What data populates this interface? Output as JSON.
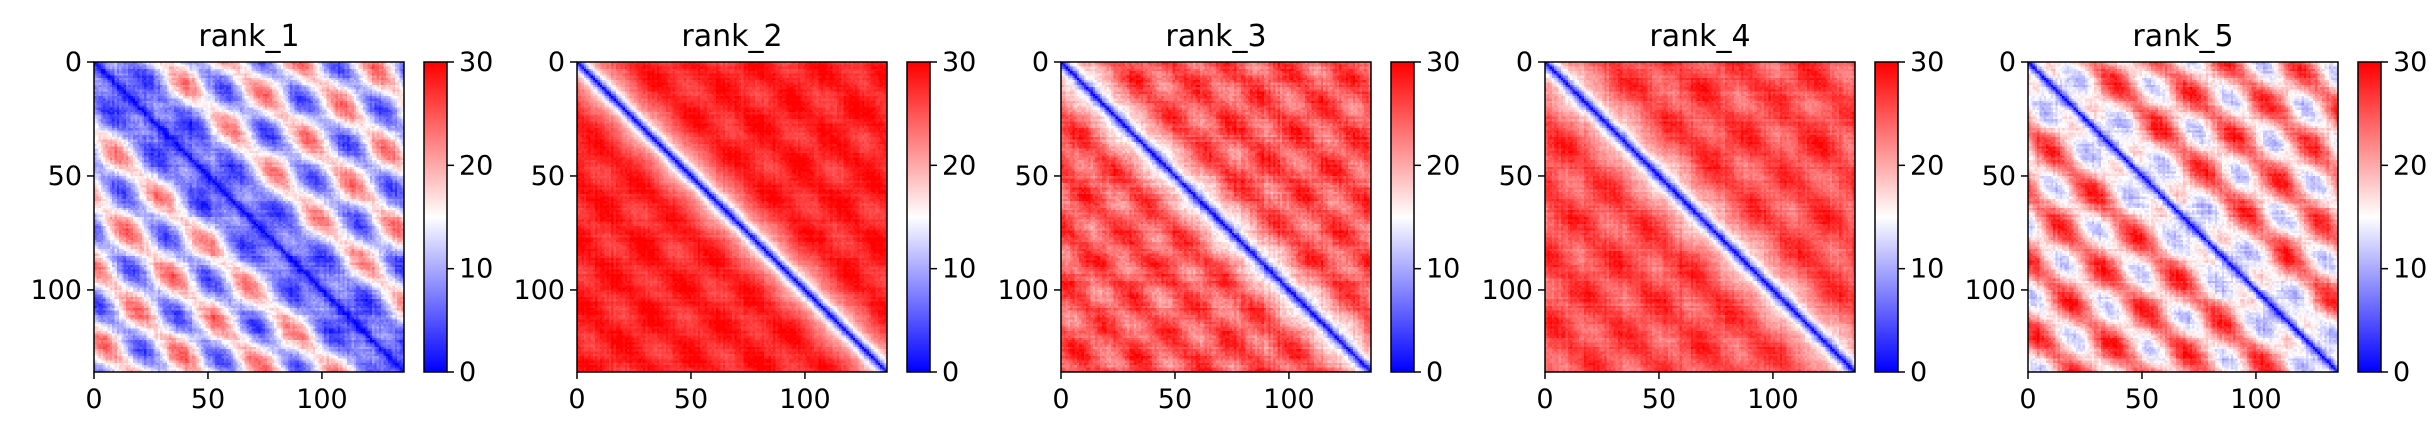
{
  "figure": {
    "colormap": {
      "name": "bwr",
      "low": "#0000ff",
      "mid": "#ffffff",
      "high": "#ff0000"
    }
  },
  "chart_data": [
    {
      "type": "heatmap",
      "title": "rank_1",
      "matrix_size": 136,
      "xlim": [
        0,
        136
      ],
      "ylim": [
        136,
        0
      ],
      "xticks": [
        0,
        50,
        100
      ],
      "yticks": [
        0,
        50,
        100
      ],
      "colorbar": {
        "vmin": 0,
        "vmax": 30,
        "ticks": [
          0,
          10,
          20,
          30
        ]
      },
      "pattern": {
        "diag_width": 10,
        "background": 14,
        "periodic": 7,
        "period": 30,
        "noise": 2.5
      }
    },
    {
      "type": "heatmap",
      "title": "rank_2",
      "matrix_size": 136,
      "xlim": [
        0,
        136
      ],
      "ylim": [
        136,
        0
      ],
      "xticks": [
        0,
        50,
        100
      ],
      "yticks": [
        0,
        50,
        100
      ],
      "colorbar": {
        "vmin": 0,
        "vmax": 30,
        "ticks": [
          0,
          10,
          20,
          30
        ]
      },
      "pattern": {
        "diag_width": 6,
        "background": 28,
        "periodic": 1.5,
        "period": 26,
        "noise": 1.5
      }
    },
    {
      "type": "heatmap",
      "title": "rank_3",
      "matrix_size": 136,
      "xlim": [
        0,
        136
      ],
      "ylim": [
        136,
        0
      ],
      "xticks": [
        0,
        50,
        100
      ],
      "yticks": [
        0,
        50,
        100
      ],
      "colorbar": {
        "vmin": 0,
        "vmax": 30,
        "ticks": [
          0,
          10,
          20,
          30
        ]
      },
      "pattern": {
        "diag_width": 6,
        "background": 25,
        "periodic": 2.5,
        "period": 24,
        "noise": 2.5
      }
    },
    {
      "type": "heatmap",
      "title": "rank_4",
      "matrix_size": 136,
      "xlim": [
        0,
        136
      ],
      "ylim": [
        136,
        0
      ],
      "xticks": [
        0,
        50,
        100
      ],
      "yticks": [
        0,
        50,
        100
      ],
      "colorbar": {
        "vmin": 0,
        "vmax": 30,
        "ticks": [
          0,
          10,
          20,
          30
        ]
      },
      "pattern": {
        "diag_width": 6,
        "background": 25.5,
        "periodic": 2,
        "period": 28,
        "noise": 2
      }
    },
    {
      "type": "heatmap",
      "title": "rank_5",
      "matrix_size": 136,
      "xlim": [
        0,
        136
      ],
      "ylim": [
        136,
        0
      ],
      "xticks": [
        0,
        50,
        100
      ],
      "yticks": [
        0,
        50,
        100
      ],
      "colorbar": {
        "vmin": 0,
        "vmax": 30,
        "ticks": [
          0,
          10,
          20,
          30
        ]
      },
      "pattern": {
        "diag_width": 5,
        "background": 20,
        "periodic": 6,
        "period": 29,
        "noise": 2.5
      }
    }
  ]
}
